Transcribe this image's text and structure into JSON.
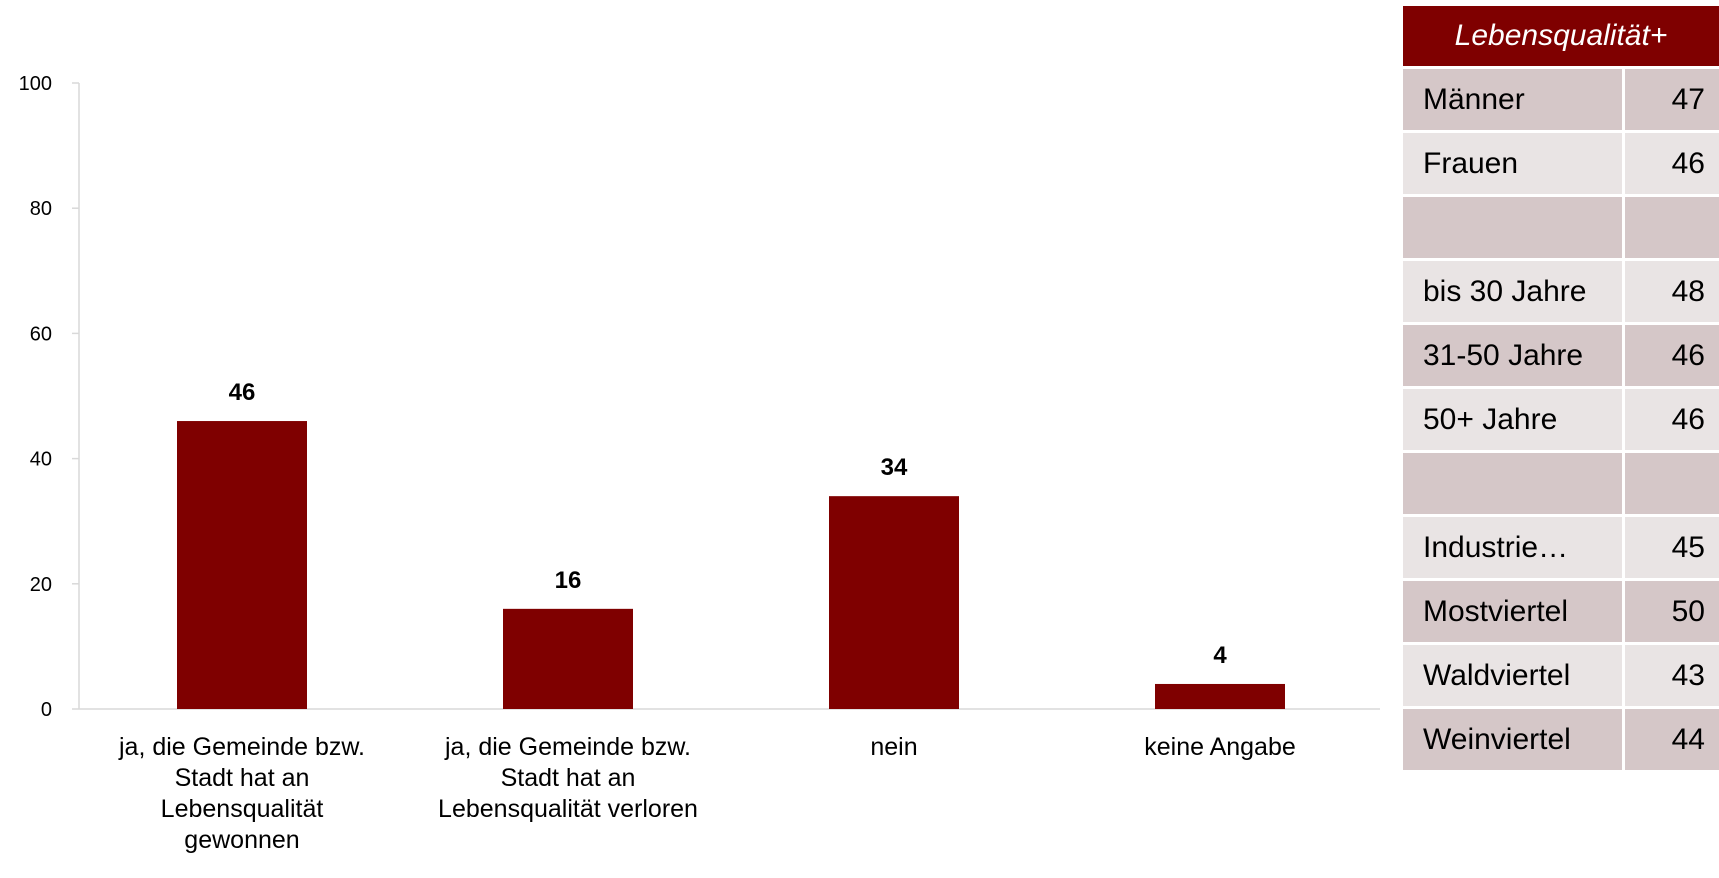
{
  "chart_data": {
    "type": "bar",
    "categories": [
      "ja, die Gemeinde bzw. Stadt hat an Lebensqualität gewonnen",
      "ja, die Gemeinde bzw. Stadt hat an Lebensqualität verloren",
      "nein",
      "keine Angabe"
    ],
    "category_lines": [
      [
        "ja, die Gemeinde bzw.",
        "Stadt hat an",
        "Lebensqualität",
        "gewonnen"
      ],
      [
        "ja, die Gemeinde bzw.",
        "Stadt hat an",
        "Lebensqualität verloren"
      ],
      [
        "nein"
      ],
      [
        "keine Angabe"
      ]
    ],
    "values": [
      46,
      16,
      34,
      4
    ],
    "ylim": [
      0,
      100
    ],
    "yticks": [
      0,
      20,
      40,
      60,
      80,
      100
    ],
    "grid": false,
    "bar_color": "#7f0000",
    "title": "",
    "xlabel": "",
    "ylabel": ""
  },
  "side_table": {
    "header": "Lebensqualität+",
    "header_color": "#7f0000",
    "rows": [
      {
        "label": "Männer",
        "value": "47"
      },
      {
        "label": "Frauen",
        "value": "46"
      },
      {
        "label": "",
        "value": ""
      },
      {
        "label": "bis 30 Jahre",
        "value": "48"
      },
      {
        "label": "31-50 Jahre",
        "value": "46"
      },
      {
        "label": "50+ Jahre",
        "value": "46"
      },
      {
        "label": "",
        "value": ""
      },
      {
        "label": "Industrie…",
        "value": "45"
      },
      {
        "label": "Mostviertel",
        "value": "50"
      },
      {
        "label": "Waldviertel",
        "value": "43"
      },
      {
        "label": "Weinviertel",
        "value": "44"
      }
    ]
  }
}
